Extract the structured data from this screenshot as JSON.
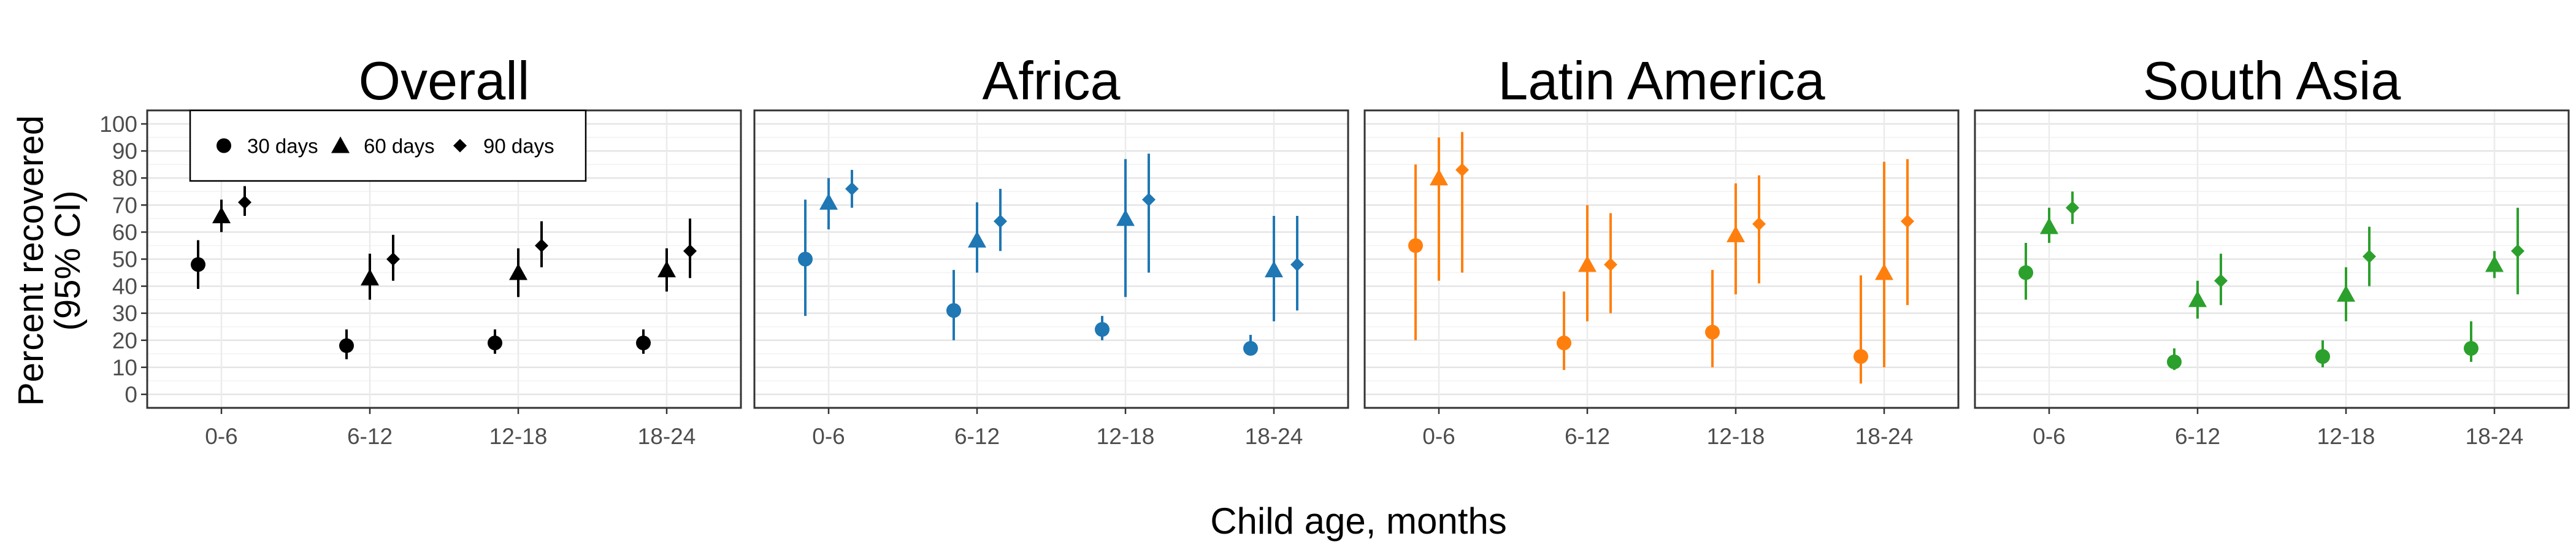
{
  "chart_data": {
    "type": "scatter",
    "subtype": "point-range faceted by region",
    "xlabel": "Child age, months",
    "ylabel_line1": "Percent recovered",
    "ylabel_line2": "(95% CI)",
    "categories": [
      "0-6",
      "6-12",
      "12-18",
      "18-24"
    ],
    "ylim": [
      -5,
      105
    ],
    "yticks": [
      0,
      10,
      20,
      30,
      40,
      50,
      60,
      70,
      80,
      90,
      100
    ],
    "grid": true,
    "legend": {
      "placement": "top-left",
      "entries": [
        {
          "label": "30 days",
          "shape": "circle"
        },
        {
          "label": "60 days",
          "shape": "triangle"
        },
        {
          "label": "90 days",
          "shape": "diamond"
        }
      ]
    },
    "panels": [
      {
        "title": "Overall",
        "color": "#000000",
        "series": [
          {
            "name": "30 days",
            "values": [
              48,
              18,
              19,
              19
            ],
            "lower": [
              39,
              13,
              15,
              15
            ],
            "upper": [
              57,
              24,
              24,
              24
            ]
          },
          {
            "name": "60 days",
            "values": [
              66,
              43,
              45,
              46
            ],
            "lower": [
              60,
              35,
              36,
              38
            ],
            "upper": [
              72,
              52,
              54,
              54
            ]
          },
          {
            "name": "90 days",
            "values": [
              71,
              50,
              55,
              53
            ],
            "lower": [
              66,
              42,
              47,
              43
            ],
            "upper": [
              77,
              59,
              64,
              65
            ]
          }
        ]
      },
      {
        "title": "Africa",
        "color": "#1f77b4",
        "series": [
          {
            "name": "30 days",
            "values": [
              50,
              31,
              24,
              17
            ],
            "lower": [
              29,
              20,
              20,
              15
            ],
            "upper": [
              72,
              46,
              29,
              22
            ]
          },
          {
            "name": "60 days",
            "values": [
              71,
              57,
              65,
              46
            ],
            "lower": [
              61,
              45,
              36,
              27
            ],
            "upper": [
              80,
              71,
              87,
              66
            ]
          },
          {
            "name": "90 days",
            "values": [
              76,
              64,
              72,
              48
            ],
            "lower": [
              69,
              53,
              45,
              31
            ],
            "upper": [
              83,
              76,
              89,
              66
            ]
          }
        ]
      },
      {
        "title": "Latin America",
        "color": "#ff7f0e",
        "series": [
          {
            "name": "30 days",
            "values": [
              55,
              19,
              23,
              14
            ],
            "lower": [
              20,
              9,
              10,
              4
            ],
            "upper": [
              85,
              38,
              46,
              44
            ]
          },
          {
            "name": "60 days",
            "values": [
              80,
              48,
              59,
              45
            ],
            "lower": [
              42,
              27,
              37,
              10
            ],
            "upper": [
              95,
              70,
              78,
              86
            ]
          },
          {
            "name": "90 days",
            "values": [
              83,
              48,
              63,
              64
            ],
            "lower": [
              45,
              30,
              41,
              33
            ],
            "upper": [
              97,
              67,
              81,
              87
            ]
          }
        ]
      },
      {
        "title": "South Asia",
        "color": "#2ca02c",
        "series": [
          {
            "name": "30 days",
            "values": [
              45,
              12,
              14,
              17
            ],
            "lower": [
              35,
              9,
              10,
              12
            ],
            "upper": [
              56,
              17,
              20,
              27
            ]
          },
          {
            "name": "60 days",
            "values": [
              62,
              35,
              37,
              48
            ],
            "lower": [
              56,
              28,
              27,
              43
            ],
            "upper": [
              69,
              42,
              47,
              53
            ]
          },
          {
            "name": "90 days",
            "values": [
              69,
              42,
              51,
              53
            ],
            "lower": [
              63,
              33,
              40,
              37
            ],
            "upper": [
              75,
              52,
              62,
              69
            ]
          }
        ]
      }
    ]
  }
}
